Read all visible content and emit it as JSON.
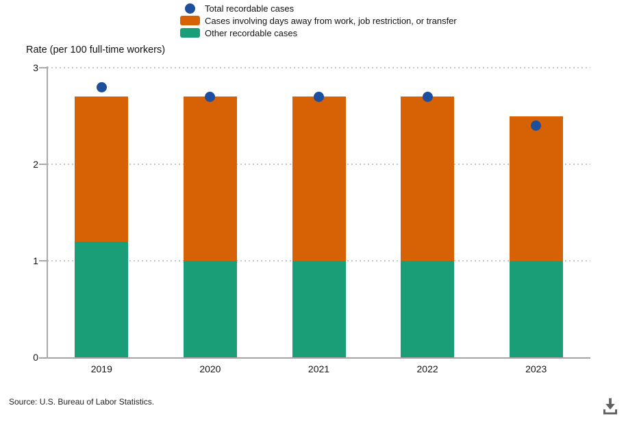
{
  "legend": {
    "items": [
      {
        "label": "Total recordable cases",
        "marker": "circle",
        "color": "#1d4f9e"
      },
      {
        "label": "Cases involving days away from work, job restriction, or transfer",
        "marker": "square",
        "color": "#d76205"
      },
      {
        "label": "Other recordable cases",
        "marker": "square",
        "color": "#1a9e78"
      }
    ]
  },
  "chart": {
    "y_axis_title": "Rate (per 100 full-time workers)"
  },
  "source_note": "Source: U.S. Bureau of Labor Statistics.",
  "icons": {
    "download": "download-icon"
  },
  "chart_data": {
    "type": "bar",
    "subtype": "stacked-bars-with-point-overlay",
    "categories": [
      "2019",
      "2020",
      "2021",
      "2022",
      "2023"
    ],
    "series": [
      {
        "name": "Other recordable cases",
        "render": "bar",
        "color": "#1a9e78",
        "values": [
          1.2,
          1.0,
          1.0,
          1.0,
          1.0
        ]
      },
      {
        "name": "Cases involving days away from work, job restriction, or transfer",
        "render": "bar",
        "color": "#d76205",
        "values": [
          1.5,
          1.7,
          1.7,
          1.7,
          1.5
        ]
      },
      {
        "name": "Total recordable cases",
        "render": "point",
        "color": "#1d4f9e",
        "values": [
          2.8,
          2.7,
          2.7,
          2.7,
          2.4
        ]
      }
    ],
    "title": "",
    "xlabel": "",
    "ylabel": "Rate (per 100 full-time workers)",
    "ylim": [
      0,
      3
    ],
    "yticks": [
      0,
      1,
      2,
      3
    ],
    "grid": "horizontal-dotted",
    "legend_position": "top"
  }
}
